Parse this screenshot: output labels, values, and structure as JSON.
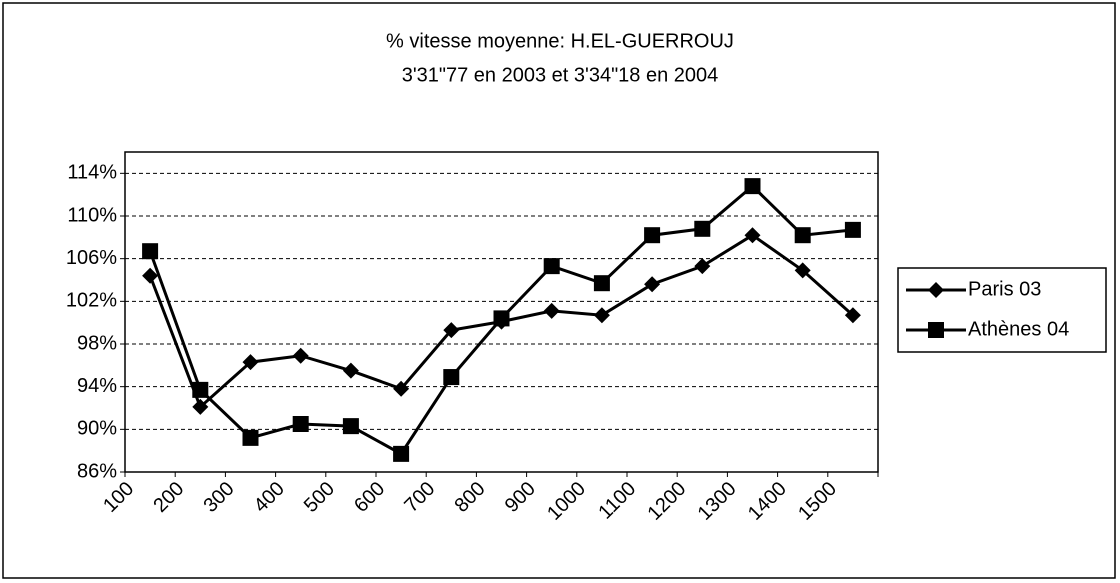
{
  "chart_data": {
    "type": "line",
    "title": "% vitesse moyenne: H.EL-GUERROUJ",
    "subtitle": "3'31\"77 en 2003 et 3'34\"18 en 2004",
    "categories": [
      "100",
      "200",
      "300",
      "400",
      "500",
      "600",
      "700",
      "800",
      "900",
      "1000",
      "1100",
      "1200",
      "1300",
      "1400",
      "1500"
    ],
    "series": [
      {
        "name": "Paris 03",
        "color": "#000000",
        "marker": "diamond",
        "values": [
          104.4,
          92.1,
          96.3,
          96.9,
          95.5,
          93.8,
          99.3,
          100.1,
          101.1,
          100.7,
          103.6,
          105.3,
          108.2,
          104.9,
          100.7
        ]
      },
      {
        "name": "Athènes 04",
        "color": "#000000",
        "marker": "square",
        "values": [
          106.7,
          93.7,
          89.2,
          90.5,
          90.3,
          87.7,
          94.9,
          100.4,
          105.3,
          103.7,
          108.2,
          108.8,
          112.8,
          108.2,
          108.7
        ]
      }
    ],
    "ylim": [
      86,
      116
    ],
    "yticks": [
      {
        "value": 86,
        "label": "86%"
      },
      {
        "value": 90,
        "label": "90%"
      },
      {
        "value": 94,
        "label": "94%"
      },
      {
        "value": 98,
        "label": "98%"
      },
      {
        "value": 102,
        "label": "102%"
      },
      {
        "value": 106,
        "label": "106%"
      },
      {
        "value": 110,
        "label": "110%"
      },
      {
        "value": 114,
        "label": "114%"
      }
    ],
    "grid": true,
    "legend": "right"
  }
}
